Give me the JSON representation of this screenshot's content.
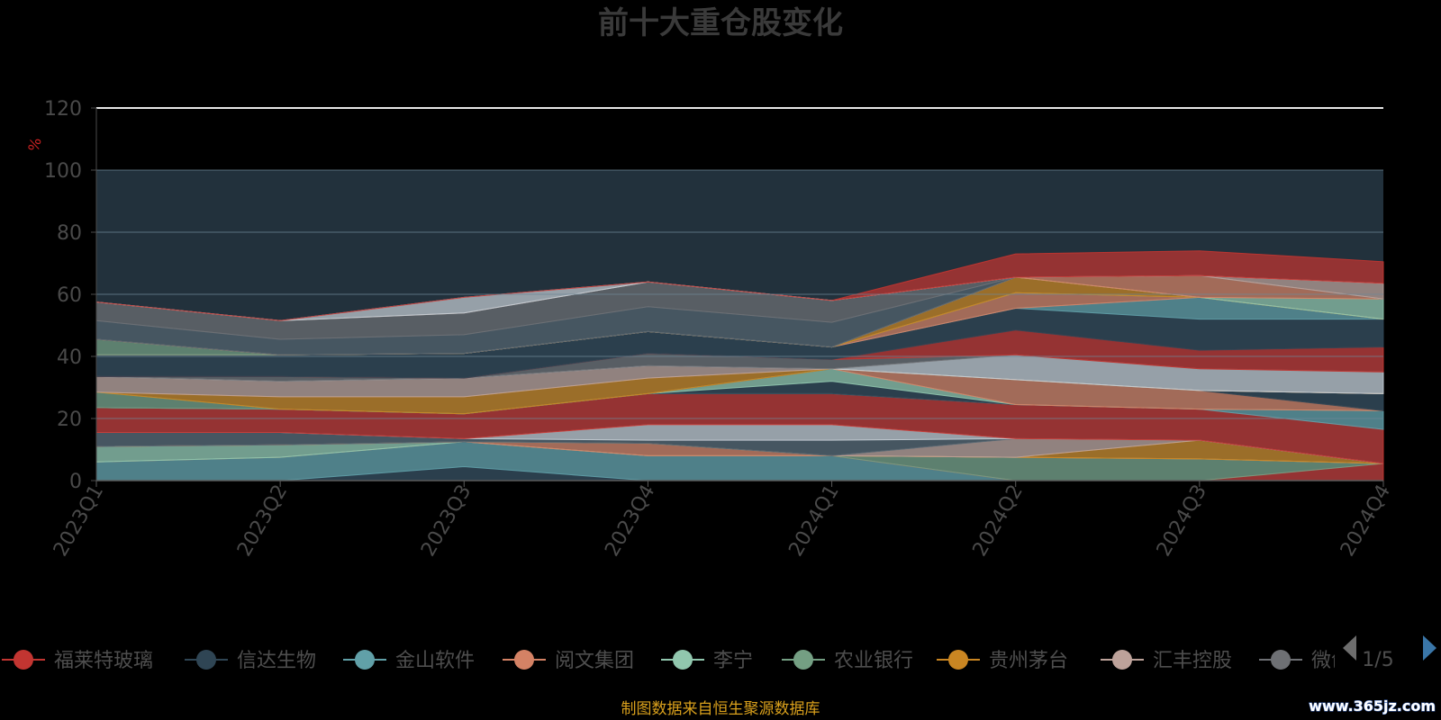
{
  "title": "前十大重仓股变化",
  "footer_note": "制图数据来自恒生聚源数据库",
  "watermark": "www.365jz.com",
  "legend_pager": {
    "text": "1/5",
    "prev_icon": "triangle-left-icon",
    "next_icon": "triangle-right-icon"
  },
  "legend_items": [
    {
      "label": "福莱特玻璃",
      "color": "#c23531"
    },
    {
      "label": "信达生物",
      "color": "#2f4554"
    },
    {
      "label": "金山软件",
      "color": "#61a0a8"
    },
    {
      "label": "阅文集团",
      "color": "#d48265"
    },
    {
      "label": "李宁",
      "color": "#91c7ae"
    },
    {
      "label": "农业银行",
      "color": "#749f83"
    },
    {
      "label": "贵州茅台",
      "color": "#ca8622"
    },
    {
      "label": "汇丰控股",
      "color": "#bda29a"
    },
    {
      "label": "微创",
      "color": "#6e7074"
    }
  ],
  "chart_data": {
    "type": "area",
    "stacked": true,
    "title": "前十大重仓股变化",
    "y_unit": "%",
    "categories": [
      "2023Q1",
      "2023Q2",
      "2023Q3",
      "2023Q4",
      "2024Q1",
      "2024Q2",
      "2024Q3",
      "2024Q4"
    ],
    "ylim": [
      0,
      120
    ],
    "y_ticks": [
      0,
      20,
      40,
      60,
      80,
      100,
      120
    ],
    "grid": true,
    "legend_position": "bottom",
    "series": [
      {
        "color": "#2f4554",
        "values": [
          0,
          0,
          4.5,
          0,
          0,
          0,
          0,
          0
        ]
      },
      {
        "color": "#61a0a8",
        "values": [
          6,
          7.5,
          8,
          8,
          8,
          0,
          0,
          0
        ]
      },
      {
        "color": "#c23531",
        "values": [
          0,
          0,
          0,
          0,
          0,
          0,
          0,
          5.5
        ]
      },
      {
        "color": "#749f83",
        "values": [
          0,
          0,
          0,
          0,
          0,
          7.5,
          7,
          0
        ]
      },
      {
        "color": "#91c7ae",
        "values": [
          5,
          4,
          0,
          0,
          0,
          0,
          0,
          0
        ]
      },
      {
        "color": "#d48265",
        "values": [
          0,
          0,
          0,
          4,
          0,
          0,
          0,
          0
        ]
      },
      {
        "color": "#ca8622",
        "values": [
          0,
          0,
          0,
          0,
          0,
          0,
          6,
          0
        ]
      },
      {
        "color": "#bda29a",
        "values": [
          0,
          0,
          0,
          0,
          0,
          6,
          0,
          0
        ]
      },
      {
        "color": "#546570",
        "values": [
          4.5,
          4,
          1,
          1,
          5,
          0,
          0,
          0
        ]
      },
      {
        "color": "#c4ccd3",
        "values": [
          0,
          0,
          0,
          5,
          5,
          0,
          0,
          0
        ]
      },
      {
        "color": "#c23531",
        "values": [
          8,
          7.5,
          8,
          10,
          10,
          11,
          10,
          11
        ]
      },
      {
        "color": "#61a0a8",
        "values": [
          0,
          0,
          0,
          0,
          0,
          0,
          0,
          6
        ]
      },
      {
        "color": "#2f4554",
        "values": [
          0,
          0,
          0,
          0,
          4,
          0,
          0,
          0
        ]
      },
      {
        "color": "#91c7ae",
        "values": [
          0,
          0,
          0,
          0,
          4,
          0,
          0,
          0
        ]
      },
      {
        "color": "#d48265",
        "values": [
          0,
          0,
          0,
          0,
          0,
          8,
          6,
          0
        ]
      },
      {
        "color": "#2f4554",
        "values": [
          0,
          0,
          0,
          0,
          0,
          0,
          0,
          5.5
        ]
      },
      {
        "color": "#749f83",
        "values": [
          5,
          0,
          0,
          0,
          0,
          0,
          0,
          0
        ]
      },
      {
        "color": "#ca8622",
        "values": [
          0,
          4,
          5.5,
          5,
          0,
          0,
          0,
          0
        ]
      },
      {
        "color": "#bda29a",
        "values": [
          5,
          5,
          6,
          4,
          0,
          0,
          0,
          0
        ]
      },
      {
        "color": "#c4ccd3",
        "values": [
          0,
          0,
          0,
          0,
          0,
          8,
          7,
          7
        ]
      },
      {
        "color": "#6e7074",
        "values": [
          0,
          1.5,
          0,
          4,
          3,
          0,
          0,
          0
        ]
      },
      {
        "color": "#c23531",
        "values": [
          0,
          0,
          0,
          0,
          0,
          8,
          6,
          8
        ]
      },
      {
        "color": "#2f4554",
        "values": [
          7,
          7,
          8,
          7,
          4,
          7,
          10,
          9
        ]
      },
      {
        "color": "#61a0a8",
        "values": [
          0,
          0,
          0,
          0,
          0,
          0,
          7,
          0
        ]
      },
      {
        "color": "#d48265",
        "values": [
          0,
          0,
          0,
          0,
          0,
          5,
          0,
          0
        ]
      },
      {
        "color": "#749f83",
        "values": [
          5,
          0,
          0,
          0,
          0,
          0,
          0,
          0
        ]
      },
      {
        "color": "#ca8622",
        "values": [
          0,
          0,
          0,
          0,
          0,
          5,
          0,
          0
        ]
      },
      {
        "color": "#91c7ae",
        "values": [
          0,
          0,
          0,
          0,
          0,
          0,
          0,
          6.5
        ]
      },
      {
        "color": "#d48265",
        "values": [
          0,
          0,
          0,
          0,
          0,
          0,
          7,
          0
        ]
      },
      {
        "color": "#546570",
        "values": [
          6,
          5,
          6,
          8,
          8,
          0,
          0,
          0
        ]
      },
      {
        "color": "#6e7074",
        "values": [
          6,
          6,
          7,
          8,
          7,
          0,
          0,
          0
        ]
      },
      {
        "color": "#bda29a",
        "values": [
          0,
          0,
          0,
          0,
          0,
          0,
          0,
          5
        ]
      },
      {
        "color": "#c4ccd3",
        "values": [
          0,
          0,
          5,
          0,
          0,
          0,
          0,
          0
        ]
      },
      {
        "color": "#c23531",
        "values": [
          0,
          0,
          0,
          0,
          0,
          7.5,
          8,
          7
        ]
      }
    ]
  }
}
